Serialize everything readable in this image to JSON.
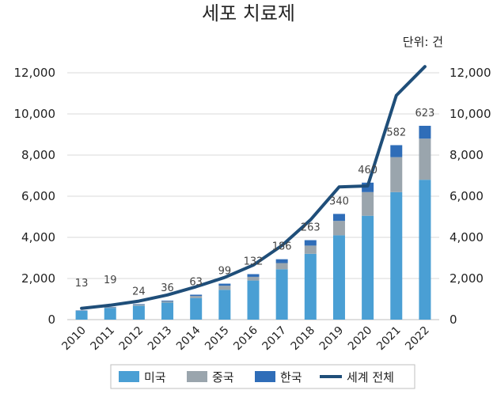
{
  "chart_data": {
    "type": "bar",
    "title": "세포 치료제",
    "unit_label": "단위: 건",
    "categories": [
      "2010",
      "2011",
      "2012",
      "2013",
      "2014",
      "2015",
      "2016",
      "2017",
      "2018",
      "2019",
      "2020",
      "2021",
      "2022"
    ],
    "series": [
      {
        "name": "미국",
        "kind": "stacked-bar",
        "color": "#4a9fd4",
        "values": [
          430,
          570,
          680,
          830,
          1050,
          1450,
          1900,
          2450,
          3200,
          4100,
          5050,
          6200,
          6800
        ]
      },
      {
        "name": "중국",
        "kind": "stacked-bar",
        "color": "#9aa5ad",
        "values": [
          10,
          30,
          50,
          60,
          100,
          200,
          180,
          300,
          400,
          700,
          1150,
          1700,
          2000
        ]
      },
      {
        "name": "한국",
        "kind": "stacked-bar",
        "color": "#2f6db8",
        "values": [
          13,
          19,
          24,
          36,
          63,
          99,
          132,
          186,
          263,
          340,
          460,
          582,
          623
        ]
      },
      {
        "name": "세계 전체",
        "kind": "line",
        "color": "#1f4e79",
        "values": [
          550,
          700,
          900,
          1200,
          1600,
          2050,
          2650,
          3600,
          4850,
          6450,
          6500,
          10900,
          12300
        ]
      }
    ],
    "data_labels": [
      "13",
      "19",
      "24",
      "36",
      "63",
      "99",
      "132",
      "186",
      "263",
      "340",
      "460",
      "582",
      "623"
    ],
    "y_left": {
      "min": 0,
      "max": 12000,
      "ticks": [
        "0",
        "2,000",
        "4,000",
        "6,000",
        "8,000",
        "10,000",
        "12,000"
      ]
    },
    "y_right": {
      "min": 0,
      "max": 12000,
      "ticks": [
        "0",
        "2,000",
        "4,000",
        "6,000",
        "8,000",
        "10,000",
        "12,000"
      ]
    },
    "grid": true,
    "legend_position": "bottom"
  }
}
